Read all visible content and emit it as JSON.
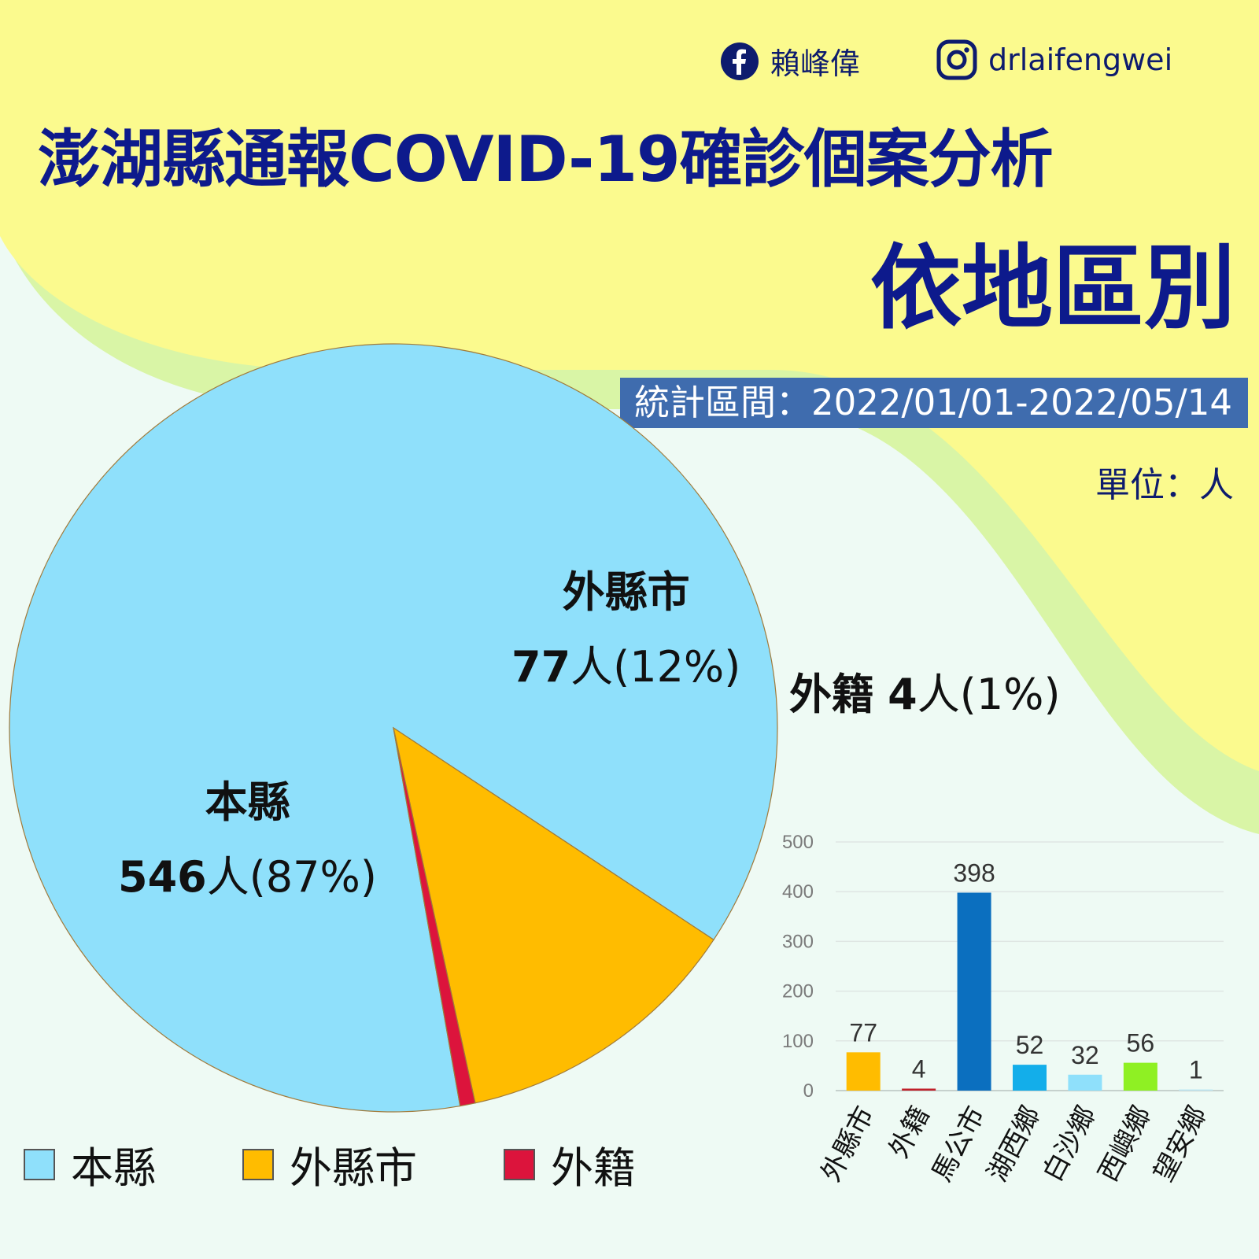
{
  "header": {
    "facebook_name": "賴峰偉",
    "instagram_handle": "drlaifengwei",
    "title": "澎湖縣通報COVID-19確診個案分析",
    "subtitle": "依地區別",
    "period": "統計區間：2022/01/01-2022/05/14",
    "unit": "單位：人"
  },
  "pie_labels": {
    "home": {
      "name": "本縣",
      "count": "546",
      "suffix": "人(87%)"
    },
    "other": {
      "name": "外縣市",
      "count": "77",
      "suffix": "人(12%)"
    },
    "foreign": {
      "name": "外籍",
      "count": "4",
      "suffix": "人(1%)"
    }
  },
  "colors": {
    "background_yellow": "#fbfa8e",
    "background_green": "#d9f5a6",
    "title_blue": "#0d1a8c",
    "period_bg": "#3f6cae"
  },
  "chart_data": [
    {
      "type": "pie",
      "categories": [
        "本縣",
        "外縣市",
        "外籍"
      ],
      "values": [
        546,
        77,
        4
      ],
      "percentages": [
        "87%",
        "12%",
        "1%"
      ],
      "colors": [
        "#8fe0fb",
        "#ffbc00",
        "#dc143c"
      ],
      "legend": [
        "本縣",
        "外縣市",
        "外籍"
      ],
      "legend_position": "bottom"
    },
    {
      "type": "bar",
      "categories": [
        "外縣市",
        "外籍",
        "馬公市",
        "湖西鄉",
        "白沙鄉",
        "西嶼鄉",
        "望安鄉"
      ],
      "values": [
        77,
        4,
        398,
        52,
        32,
        56,
        1
      ],
      "colors": [
        "#ffbc00",
        "#c0202a",
        "#0b6fbf",
        "#13aeea",
        "#8fe0fb",
        "#8ff023",
        "#bfe9f5"
      ],
      "ylim": [
        0,
        500
      ],
      "yticks": [
        0,
        100,
        200,
        300,
        400,
        500
      ],
      "grid": true
    }
  ]
}
